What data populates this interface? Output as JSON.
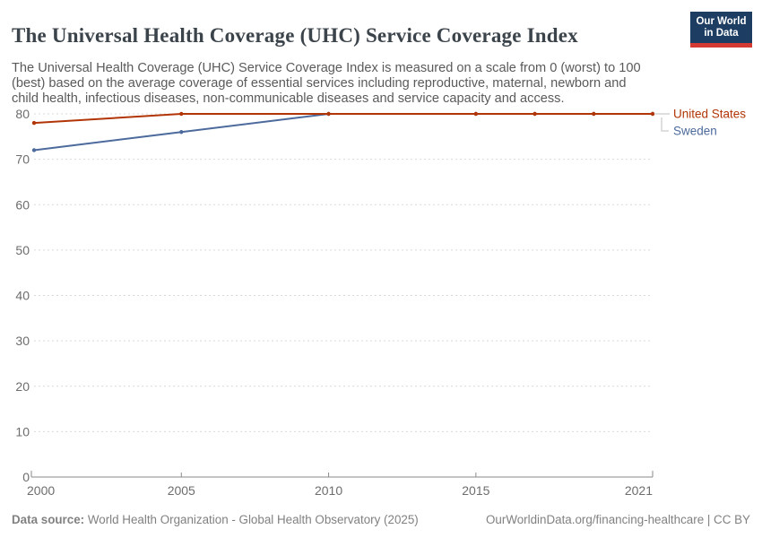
{
  "header": {
    "title": "The Universal Health Coverage (UHC) Service Coverage Index",
    "subtitle": "The Universal Health Coverage (UHC) Service Coverage Index is measured on a scale from 0 (worst) to 100 (best) based on the average coverage of essential services including reproductive, maternal, newborn and child health, infectious diseases, non-communicable diseases and service capacity and access.",
    "logo": {
      "line1": "Our World",
      "line2": "in Data",
      "bg_color": "#1d3d63",
      "accent_color": "#d43a32",
      "text_color": "#ffffff"
    }
  },
  "chart_data": {
    "type": "line",
    "title": "The Universal Health Coverage (UHC) Service Coverage Index",
    "x": [
      2000,
      2005,
      2010,
      2015,
      2017,
      2019,
      2021
    ],
    "series": [
      {
        "name": "United States",
        "color": "#b13507",
        "values": [
          78,
          80,
          80,
          80,
          80,
          80,
          80
        ]
      },
      {
        "name": "Sweden",
        "color": "#4c6a9c",
        "values": [
          72,
          76,
          80,
          80,
          80,
          80,
          80
        ]
      }
    ],
    "ylim": [
      0,
      80
    ],
    "yticks": [
      0,
      10,
      20,
      30,
      40,
      50,
      60,
      70,
      80
    ],
    "xticks": [
      2000,
      2005,
      2010,
      2015,
      2021
    ],
    "grid": "horizontal-dashed",
    "grid_color": "#d9d9d9",
    "axis_color": "#8a8a8a",
    "tick_label_color": "#6d6d6d",
    "connector_color": "#d3d3d3",
    "legend_position": "right-of-line-end"
  },
  "footer": {
    "datasource_label": "Data source:",
    "datasource_text": " World Health Organization - Global Health Observatory (2025)",
    "credit": "OurWorldinData.org/financing-healthcare | CC BY"
  }
}
